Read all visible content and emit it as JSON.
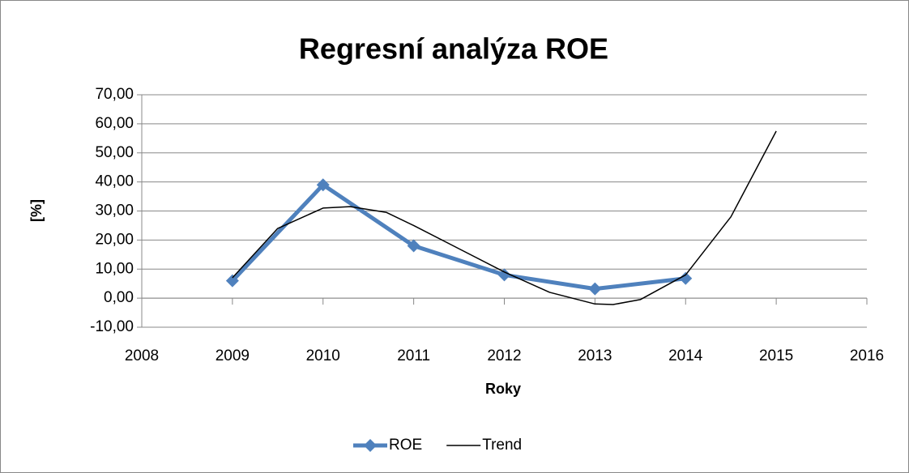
{
  "chart_data": {
    "type": "line",
    "title": "Regresní analýza ROE",
    "xlabel": "Roky",
    "ylabel": "[%]",
    "series": [
      {
        "name": "ROE",
        "color": "#4f81bd",
        "x": [
          2009,
          2010,
          2011,
          2012,
          2013,
          2014
        ],
        "values": [
          6.0,
          39.0,
          18.0,
          8.0,
          3.2,
          6.8
        ]
      },
      {
        "name": "Trend",
        "color": "#000000",
        "x": [
          2009,
          2009.5,
          2010,
          2010.3,
          2010.7,
          2011,
          2011.5,
          2012,
          2012.5,
          2013,
          2013.2,
          2013.5,
          2014,
          2014.5,
          2015
        ],
        "values": [
          7,
          24,
          31,
          31.5,
          29.5,
          25,
          17,
          9,
          2,
          -2,
          -2.2,
          -0.5,
          8,
          28,
          57.5
        ]
      }
    ],
    "xlim": [
      2008,
      2016
    ],
    "xticks": [
      2008,
      2009,
      2010,
      2011,
      2012,
      2013,
      2014,
      2015,
      2016
    ],
    "ylim": [
      -10,
      70
    ],
    "yticks": [
      {
        "value": -10,
        "label": "-10,00"
      },
      {
        "value": 0,
        "label": "0,00"
      },
      {
        "value": 10,
        "label": "10,00"
      },
      {
        "value": 20,
        "label": "20,00"
      },
      {
        "value": 30,
        "label": "30,00"
      },
      {
        "value": 40,
        "label": "40,00"
      },
      {
        "value": 50,
        "label": "50,00"
      },
      {
        "value": 60,
        "label": "60,00"
      },
      {
        "value": 70,
        "label": "70,00"
      }
    ],
    "grid": true,
    "legend": "bottom"
  }
}
